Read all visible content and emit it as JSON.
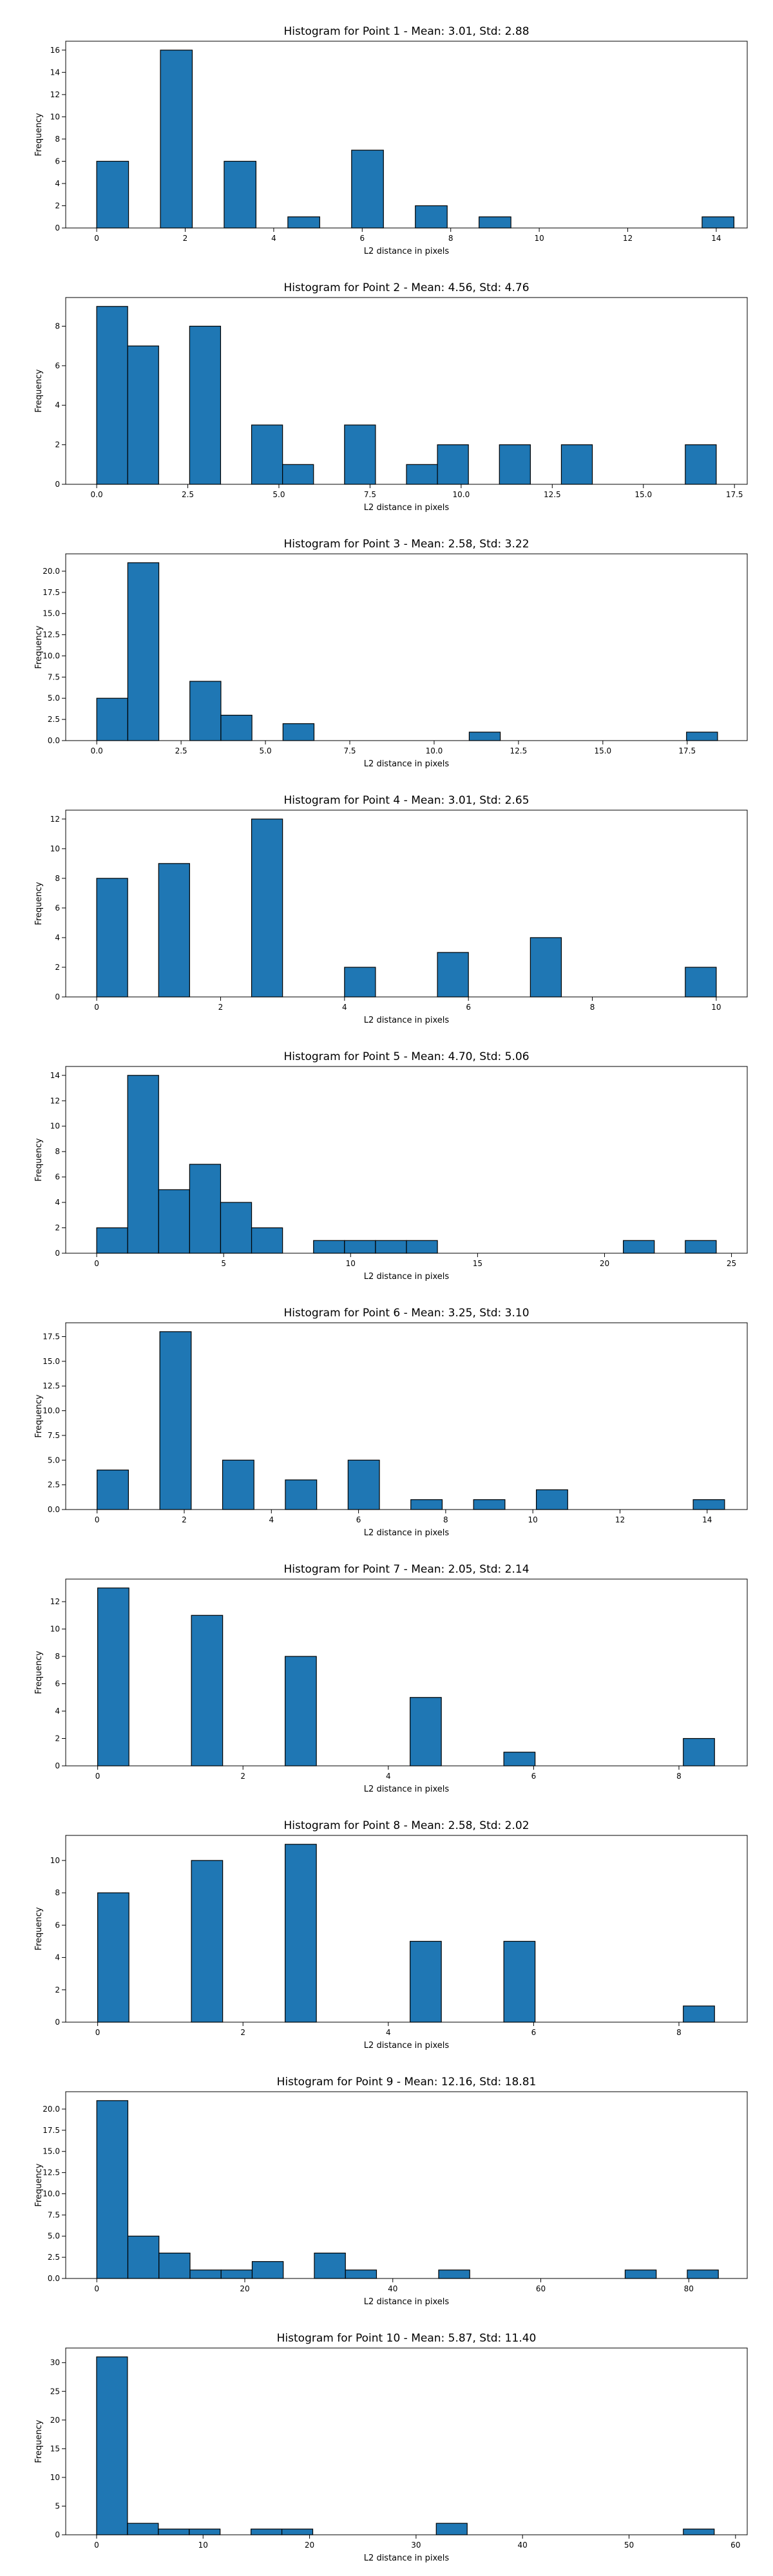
{
  "chart_data": [
    {
      "type": "bar",
      "title": "Histogram for Point 1 - Mean: 3.01, Std: 2.88",
      "xlabel": "L2 distance in pixels",
      "ylabel": "Frequency",
      "xlim": [
        -0.7,
        14.7
      ],
      "ylim": [
        0,
        16.8
      ],
      "xticks": [
        0,
        2,
        4,
        6,
        8,
        10,
        12,
        14
      ],
      "xtick_labels": [
        "0",
        "2",
        "4",
        "6",
        "8",
        "10",
        "12",
        "14"
      ],
      "yticks": [
        0,
        2,
        4,
        6,
        8,
        10,
        12,
        14,
        16
      ],
      "ytick_labels": [
        "0",
        "2",
        "4",
        "6",
        "8",
        "10",
        "12",
        "14",
        "16"
      ],
      "bin_width": 0.72,
      "bars": [
        {
          "x": 0,
          "value": 6
        },
        {
          "x": 1.44,
          "value": 16
        },
        {
          "x": 2.88,
          "value": 6
        },
        {
          "x": 4.32,
          "value": 1
        },
        {
          "x": 5.76,
          "value": 7
        },
        {
          "x": 7.2,
          "value": 2
        },
        {
          "x": 8.64,
          "value": 1
        },
        {
          "x": 13.68,
          "value": 1
        }
      ]
    },
    {
      "type": "bar",
      "title": "Histogram for Point 2 - Mean: 4.56, Std: 4.76",
      "xlabel": "L2 distance in pixels",
      "ylabel": "Frequency",
      "xlim": [
        -0.85,
        17.85
      ],
      "ylim": [
        0,
        9.45
      ],
      "xticks": [
        0,
        2.5,
        5,
        7.5,
        10,
        12.5,
        15,
        17.5
      ],
      "xtick_labels": [
        "0.0",
        "2.5",
        "5.0",
        "7.5",
        "10.0",
        "12.5",
        "15.0",
        "17.5"
      ],
      "yticks": [
        0,
        2,
        4,
        6,
        8
      ],
      "ytick_labels": [
        "0",
        "2",
        "4",
        "6",
        "8"
      ],
      "bin_width": 0.85,
      "bars": [
        {
          "x": 0,
          "value": 9
        },
        {
          "x": 0.85,
          "value": 7
        },
        {
          "x": 2.55,
          "value": 8
        },
        {
          "x": 4.25,
          "value": 3
        },
        {
          "x": 5.1,
          "value": 1
        },
        {
          "x": 6.8,
          "value": 3
        },
        {
          "x": 8.5,
          "value": 1
        },
        {
          "x": 9.35,
          "value": 2
        },
        {
          "x": 11.05,
          "value": 2
        },
        {
          "x": 12.75,
          "value": 2
        },
        {
          "x": 16.15,
          "value": 2
        }
      ]
    },
    {
      "type": "bar",
      "title": "Histogram for Point 3 - Mean: 2.58, Std: 3.22",
      "xlabel": "L2 distance in pixels",
      "ylabel": "Frequency",
      "xlim": [
        -0.92,
        19.28
      ],
      "ylim": [
        0,
        22.05
      ],
      "xticks": [
        0,
        2.5,
        5,
        7.5,
        10,
        12.5,
        15,
        17.5
      ],
      "xtick_labels": [
        "0.0",
        "2.5",
        "5.0",
        "7.5",
        "10.0",
        "12.5",
        "15.0",
        "17.5"
      ],
      "yticks": [
        0,
        2.5,
        5,
        7.5,
        10,
        12.5,
        15,
        17.5,
        20
      ],
      "ytick_labels": [
        "0.0",
        "2.5",
        "5.0",
        "7.5",
        "10.0",
        "12.5",
        "15.0",
        "17.5",
        "20.0"
      ],
      "bin_width": 0.92,
      "bars": [
        {
          "x": 0,
          "value": 5
        },
        {
          "x": 0.92,
          "value": 21
        },
        {
          "x": 2.76,
          "value": 7
        },
        {
          "x": 3.68,
          "value": 3
        },
        {
          "x": 5.52,
          "value": 2
        },
        {
          "x": 11.04,
          "value": 1
        },
        {
          "x": 17.48,
          "value": 1
        }
      ]
    },
    {
      "type": "bar",
      "title": "Histogram for Point 4 - Mean: 3.01, Std: 2.65",
      "xlabel": "L2 distance in pixels",
      "ylabel": "Frequency",
      "xlim": [
        -0.5,
        10.5
      ],
      "ylim": [
        0,
        12.6
      ],
      "xticks": [
        0,
        2,
        4,
        6,
        8,
        10
      ],
      "xtick_labels": [
        "0",
        "2",
        "4",
        "6",
        "8",
        "10"
      ],
      "yticks": [
        0,
        2,
        4,
        6,
        8,
        10,
        12
      ],
      "ytick_labels": [
        "0",
        "2",
        "4",
        "6",
        "8",
        "10",
        "12"
      ],
      "bin_width": 0.5,
      "bars": [
        {
          "x": 0,
          "value": 8
        },
        {
          "x": 1,
          "value": 9
        },
        {
          "x": 2.5,
          "value": 12
        },
        {
          "x": 4,
          "value": 2
        },
        {
          "x": 5.5,
          "value": 3
        },
        {
          "x": 7,
          "value": 4
        },
        {
          "x": 9.5,
          "value": 2
        }
      ]
    },
    {
      "type": "bar",
      "title": "Histogram for Point 5 - Mean: 4.70, Std: 5.06",
      "xlabel": "L2 distance in pixels",
      "ylabel": "Frequency",
      "xlim": [
        -1.22,
        25.62
      ],
      "ylim": [
        0,
        14.7
      ],
      "xticks": [
        0,
        5,
        10,
        15,
        20,
        25
      ],
      "xtick_labels": [
        "0",
        "5",
        "10",
        "15",
        "20",
        "25"
      ],
      "yticks": [
        0,
        2,
        4,
        6,
        8,
        10,
        12,
        14
      ],
      "ytick_labels": [
        "0",
        "2",
        "4",
        "6",
        "8",
        "10",
        "12",
        "14"
      ],
      "bin_width": 1.22,
      "bars": [
        {
          "x": 0,
          "value": 2
        },
        {
          "x": 1.22,
          "value": 14
        },
        {
          "x": 2.44,
          "value": 5
        },
        {
          "x": 3.66,
          "value": 7
        },
        {
          "x": 4.88,
          "value": 4
        },
        {
          "x": 6.1,
          "value": 2
        },
        {
          "x": 8.54,
          "value": 1
        },
        {
          "x": 9.76,
          "value": 1
        },
        {
          "x": 10.98,
          "value": 1
        },
        {
          "x": 12.2,
          "value": 1
        },
        {
          "x": 20.74,
          "value": 1
        },
        {
          "x": 23.18,
          "value": 1
        }
      ]
    },
    {
      "type": "bar",
      "title": "Histogram for Point 6 - Mean: 3.25, Std: 3.10",
      "xlabel": "L2 distance in pixels",
      "ylabel": "Frequency",
      "xlim": [
        -0.72,
        14.92
      ],
      "ylim": [
        0,
        18.9
      ],
      "xticks": [
        0,
        2,
        4,
        6,
        8,
        10,
        12,
        14
      ],
      "xtick_labels": [
        "0",
        "2",
        "4",
        "6",
        "8",
        "10",
        "12",
        "14"
      ],
      "yticks": [
        0,
        2.5,
        5,
        7.5,
        10,
        12.5,
        15,
        17.5
      ],
      "ytick_labels": [
        "0.0",
        "2.5",
        "5.0",
        "7.5",
        "10.0",
        "12.5",
        "15.0",
        "17.5"
      ],
      "bin_width": 0.72,
      "bars": [
        {
          "x": 0,
          "value": 4
        },
        {
          "x": 1.44,
          "value": 18
        },
        {
          "x": 2.88,
          "value": 5
        },
        {
          "x": 4.32,
          "value": 3
        },
        {
          "x": 5.76,
          "value": 5
        },
        {
          "x": 7.2,
          "value": 1
        },
        {
          "x": 8.64,
          "value": 1
        },
        {
          "x": 10.08,
          "value": 2
        },
        {
          "x": 13.68,
          "value": 1
        }
      ]
    },
    {
      "type": "bar",
      "title": "Histogram for Point 7 - Mean: 2.05, Std: 2.14",
      "xlabel": "L2 distance in pixels",
      "ylabel": "Frequency",
      "xlim": [
        -0.44,
        8.94
      ],
      "ylim": [
        0,
        13.65
      ],
      "xticks": [
        0,
        2,
        4,
        6,
        8
      ],
      "xtick_labels": [
        "0",
        "2",
        "4",
        "6",
        "8"
      ],
      "yticks": [
        0,
        2,
        4,
        6,
        8,
        10,
        12
      ],
      "ytick_labels": [
        "0",
        "2",
        "4",
        "6",
        "8",
        "10",
        "12"
      ],
      "bin_width": 0.43,
      "bars": [
        {
          "x": 0,
          "value": 13
        },
        {
          "x": 1.29,
          "value": 11
        },
        {
          "x": 2.58,
          "value": 8
        },
        {
          "x": 4.3,
          "value": 5
        },
        {
          "x": 5.59,
          "value": 1
        },
        {
          "x": 8.06,
          "value": 2
        }
      ]
    },
    {
      "type": "bar",
      "title": "Histogram for Point 8 - Mean: 2.58, Std: 2.02",
      "xlabel": "L2 distance in pixels",
      "ylabel": "Frequency",
      "xlim": [
        -0.44,
        8.94
      ],
      "ylim": [
        0,
        11.55
      ],
      "xticks": [
        0,
        2,
        4,
        6,
        8
      ],
      "xtick_labels": [
        "0",
        "2",
        "4",
        "6",
        "8"
      ],
      "yticks": [
        0,
        2,
        4,
        6,
        8,
        10
      ],
      "ytick_labels": [
        "0",
        "2",
        "4",
        "6",
        "8",
        "10"
      ],
      "bin_width": 0.43,
      "bars": [
        {
          "x": 0,
          "value": 8
        },
        {
          "x": 1.29,
          "value": 10
        },
        {
          "x": 2.58,
          "value": 11
        },
        {
          "x": 4.3,
          "value": 5
        },
        {
          "x": 5.59,
          "value": 5
        },
        {
          "x": 8.06,
          "value": 1
        }
      ]
    },
    {
      "type": "bar",
      "title": "Histogram for Point 9 - Mean: 12.16, Std: 18.81",
      "xlabel": "L2 distance in pixels",
      "ylabel": "Frequency",
      "xlim": [
        -4.2,
        87.9
      ],
      "ylim": [
        0,
        22.05
      ],
      "xticks": [
        0,
        20,
        40,
        60,
        80
      ],
      "xtick_labels": [
        "0",
        "20",
        "40",
        "60",
        "80"
      ],
      "yticks": [
        0,
        2.5,
        5,
        7.5,
        10,
        12.5,
        15,
        17.5,
        20
      ],
      "ytick_labels": [
        "0.0",
        "2.5",
        "5.0",
        "7.5",
        "10.0",
        "12.5",
        "15.0",
        "17.5",
        "20.0"
      ],
      "bin_width": 4.2,
      "bars": [
        {
          "x": 0,
          "value": 21
        },
        {
          "x": 4.2,
          "value": 5
        },
        {
          "x": 8.4,
          "value": 3
        },
        {
          "x": 12.6,
          "value": 1
        },
        {
          "x": 16.8,
          "value": 1
        },
        {
          "x": 21,
          "value": 2
        },
        {
          "x": 29.4,
          "value": 3
        },
        {
          "x": 33.6,
          "value": 1
        },
        {
          "x": 46.2,
          "value": 1
        },
        {
          "x": 71.4,
          "value": 1
        },
        {
          "x": 79.8,
          "value": 1
        }
      ]
    },
    {
      "type": "bar",
      "title": "Histogram for Point 10 - Mean: 5.87, Std: 11.40",
      "xlabel": "L2 distance in pixels",
      "ylabel": "Frequency",
      "xlim": [
        -2.9,
        61.1
      ],
      "ylim": [
        0,
        32.55
      ],
      "xticks": [
        0,
        10,
        20,
        30,
        40,
        50,
        60
      ],
      "xtick_labels": [
        "0",
        "10",
        "20",
        "30",
        "40",
        "50",
        "60"
      ],
      "yticks": [
        0,
        5,
        10,
        15,
        20,
        25,
        30
      ],
      "ytick_labels": [
        "0",
        "5",
        "10",
        "15",
        "20",
        "25",
        "30"
      ],
      "bin_width": 2.9,
      "bars": [
        {
          "x": 0,
          "value": 31
        },
        {
          "x": 2.9,
          "value": 2
        },
        {
          "x": 5.8,
          "value": 1
        },
        {
          "x": 8.7,
          "value": 1
        },
        {
          "x": 14.5,
          "value": 1
        },
        {
          "x": 17.4,
          "value": 1
        },
        {
          "x": 31.9,
          "value": 2
        },
        {
          "x": 55.1,
          "value": 1
        }
      ]
    }
  ]
}
